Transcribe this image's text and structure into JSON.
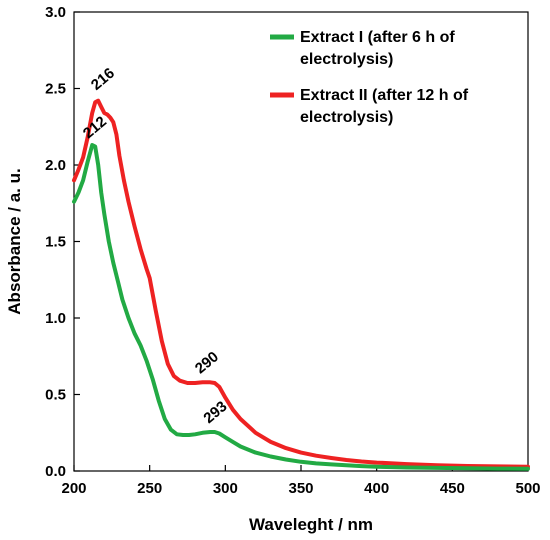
{
  "chart_data": {
    "type": "line",
    "xlabel": "Waveleght / nm",
    "ylabel": "Absorbance / a. u.",
    "xlim": [
      200,
      500
    ],
    "ylim": [
      0,
      3.0
    ],
    "xticks": [
      200,
      250,
      300,
      350,
      400,
      450,
      500
    ],
    "xtick_labels": [
      "200",
      "250",
      "300",
      "350",
      "400",
      "450",
      "500"
    ],
    "yticks": [
      0,
      0.5,
      1.0,
      1.5,
      2.0,
      2.5,
      3.0
    ],
    "ytick_labels": [
      "0.0",
      "0.5",
      "1.0",
      "1.5",
      "2.0",
      "2.5",
      "3.0"
    ],
    "grid": false,
    "legend_position": "top-right",
    "series": [
      {
        "name": "Extract I (after 6 h of electrolysis)",
        "color": "#22aa44",
        "x": [
          200,
          203,
          206,
          209,
          212,
          214,
          216,
          218,
          220,
          223,
          226,
          229,
          232,
          236,
          240,
          244,
          248,
          252,
          256,
          260,
          264,
          268,
          272,
          276,
          280,
          285,
          290,
          293,
          296,
          300,
          305,
          310,
          320,
          330,
          340,
          350,
          360,
          370,
          380,
          390,
          400,
          420,
          440,
          460,
          480,
          500
        ],
        "y": [
          1.76,
          1.82,
          1.9,
          2.02,
          2.13,
          2.12,
          2.0,
          1.82,
          1.68,
          1.5,
          1.36,
          1.24,
          1.12,
          1.0,
          0.9,
          0.82,
          0.72,
          0.6,
          0.46,
          0.34,
          0.27,
          0.24,
          0.235,
          0.235,
          0.24,
          0.25,
          0.255,
          0.255,
          0.245,
          0.22,
          0.19,
          0.16,
          0.12,
          0.095,
          0.075,
          0.06,
          0.05,
          0.043,
          0.037,
          0.032,
          0.028,
          0.023,
          0.02,
          0.018,
          0.016,
          0.015
        ]
      },
      {
        "name": "Extract II (after 12 h of electrolysis)",
        "color": "#ee2222",
        "x": [
          200,
          203,
          206,
          209,
          212,
          214,
          216,
          218,
          220,
          222,
          224,
          226,
          228,
          230,
          233,
          236,
          240,
          244,
          248,
          250,
          254,
          258,
          262,
          266,
          270,
          275,
          280,
          285,
          290,
          293,
          296,
          300,
          305,
          310,
          320,
          330,
          340,
          350,
          360,
          370,
          380,
          390,
          400,
          420,
          440,
          460,
          480,
          500
        ],
        "y": [
          1.9,
          1.97,
          2.05,
          2.18,
          2.34,
          2.41,
          2.42,
          2.38,
          2.34,
          2.33,
          2.31,
          2.28,
          2.2,
          2.06,
          1.9,
          1.76,
          1.6,
          1.45,
          1.32,
          1.26,
          1.05,
          0.85,
          0.7,
          0.62,
          0.59,
          0.575,
          0.575,
          0.58,
          0.58,
          0.575,
          0.55,
          0.48,
          0.4,
          0.34,
          0.25,
          0.19,
          0.15,
          0.12,
          0.1,
          0.085,
          0.072,
          0.062,
          0.055,
          0.045,
          0.038,
          0.033,
          0.03,
          0.028
        ]
      }
    ],
    "annotations": [
      {
        "text": "216",
        "x": 216,
        "y": 2.42,
        "series": 1
      },
      {
        "text": "212",
        "x": 212,
        "y": 2.13,
        "series": 0
      },
      {
        "text": "290",
        "x": 290,
        "y": 0.58,
        "series": 1
      },
      {
        "text": "293",
        "x": 293,
        "y": 0.255,
        "series": 0
      }
    ]
  }
}
